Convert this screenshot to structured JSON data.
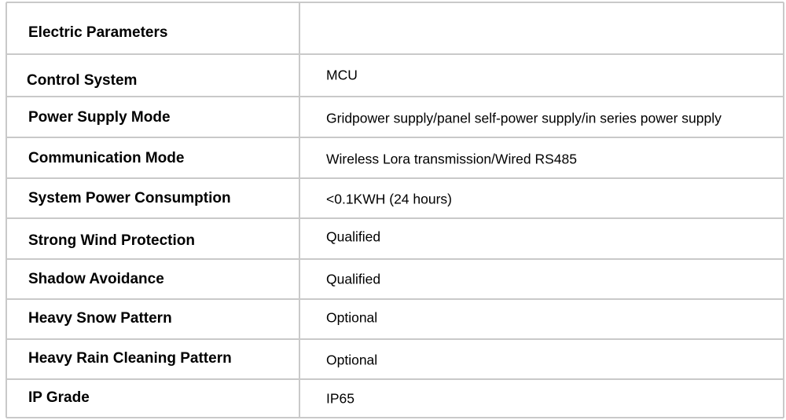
{
  "table": {
    "title": "Electric Parameters",
    "rows": [
      [
        "Control System",
        "MCU"
      ],
      [
        "Power Supply Mode",
        "Gridpower supply/panel self-power supply/in series power supply"
      ],
      [
        "Communication Mode",
        "Wireless Lora transmission/Wired RS485"
      ],
      [
        "System Power Consumption",
        "<0.1KWH (24 hours)"
      ],
      [
        "Strong Wind Protection",
        "Qualified"
      ],
      [
        "Shadow Avoidance",
        "Qualified"
      ],
      [
        "Heavy Snow Pattern",
        "Optional"
      ],
      [
        "Heavy Rain Cleaning Pattern",
        "Optional"
      ],
      [
        "IP Grade",
        "IP65"
      ]
    ]
  }
}
